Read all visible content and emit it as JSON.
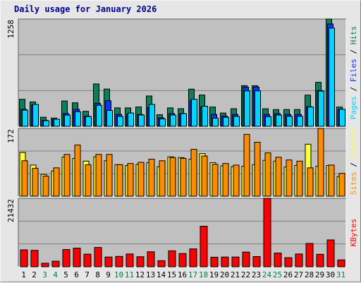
{
  "title": "Daily usage for January 2026",
  "colors": {
    "pages": "#00d5ff",
    "files": "#1433f0",
    "hits": "#0e7d5a",
    "sites": "#ff8c00",
    "visits": "#ffff33",
    "kbytes": "#ff0000",
    "weekday_label": "#000000",
    "weekend_label": "#008040",
    "plot_bg": "#c0c0c0"
  },
  "chart_data": [
    {
      "type": "bar",
      "panel": "hits-files-pages",
      "title": "Daily usage for January 2026",
      "categories": [
        "1",
        "2",
        "3",
        "4",
        "5",
        "6",
        "7",
        "8",
        "9",
        "10",
        "11",
        "12",
        "13",
        "14",
        "15",
        "16",
        "17",
        "18",
        "19",
        "20",
        "21",
        "22",
        "23",
        "24",
        "25",
        "26",
        "27",
        "28",
        "29",
        "30",
        "31"
      ],
      "weekend_days": [
        "3",
        "4",
        "10",
        "11",
        "17",
        "18",
        "24",
        "25",
        "31"
      ],
      "ymax_label": "1258",
      "ylim": [
        0,
        1258
      ],
      "legend": [
        "Pages",
        "Files",
        "Hits"
      ],
      "series": [
        {
          "name": "Hits",
          "values": [
            317,
            286,
            107,
            97,
            297,
            276,
            176,
            497,
            437,
            216,
            216,
            227,
            356,
            136,
            216,
            207,
            436,
            367,
            226,
            156,
            207,
            477,
            476,
            206,
            196,
            197,
            197,
            366,
            516,
            1258,
            226
          ]
        },
        {
          "name": "Files",
          "values": [
            200,
            250,
            70,
            80,
            150,
            200,
            120,
            270,
            300,
            140,
            140,
            140,
            220,
            100,
            150,
            150,
            300,
            230,
            140,
            120,
            140,
            460,
            460,
            140,
            150,
            140,
            140,
            230,
            420,
            1200,
            200
          ]
        },
        {
          "name": "Pages",
          "values": [
            190,
            257,
            66,
            83,
            132,
            171,
            115,
            247,
            186,
            116,
            156,
            133,
            257,
            87,
            133,
            149,
            317,
            236,
            96,
            106,
            116,
            415,
            416,
            113,
            132,
            118,
            118,
            227,
            413,
            1152,
            200
          ]
        }
      ]
    },
    {
      "type": "bar",
      "panel": "visits-sites",
      "categories": [
        "1",
        "2",
        "3",
        "4",
        "5",
        "6",
        "7",
        "8",
        "9",
        "10",
        "11",
        "12",
        "13",
        "14",
        "15",
        "16",
        "17",
        "18",
        "19",
        "20",
        "21",
        "22",
        "23",
        "24",
        "25",
        "26",
        "27",
        "28",
        "29",
        "30",
        "31"
      ],
      "ymax_label": "172",
      "ylim": [
        0,
        172
      ],
      "legend": [
        "Sites",
        "Visits"
      ],
      "series": [
        {
          "name": "Visits",
          "values": [
            111,
            79,
            55,
            64,
            99,
            96,
            89,
            100,
            90,
            80,
            78,
            81,
            85,
            75,
            100,
            98,
            94,
            108,
            85,
            77,
            75,
            76,
            80,
            91,
            89,
            74,
            78,
            132,
            76,
            78,
            50
          ]
        },
        {
          "name": "Sites",
          "values": [
            90,
            71,
            51,
            72,
            106,
            130,
            80,
            106,
            106,
            80,
            83,
            86,
            94,
            90,
            98,
            96,
            119,
            102,
            81,
            83,
            79,
            157,
            137,
            110,
            99,
            92,
            89,
            72,
            172,
            79,
            58
          ]
        }
      ]
    },
    {
      "type": "bar",
      "panel": "kbytes",
      "categories": [
        "1",
        "2",
        "3",
        "4",
        "5",
        "6",
        "7",
        "8",
        "9",
        "10",
        "11",
        "12",
        "13",
        "14",
        "15",
        "16",
        "17",
        "18",
        "19",
        "20",
        "21",
        "22",
        "23",
        "24",
        "25",
        "26",
        "27",
        "28",
        "29",
        "30",
        "31"
      ],
      "ymax_label": "21432",
      "ylim": [
        0,
        21432
      ],
      "legend": [
        "KBytes"
      ],
      "series": [
        {
          "name": "KBytes",
          "values": [
            5300,
            5150,
            1100,
            1750,
            5400,
            5850,
            3950,
            6050,
            3050,
            3250,
            4000,
            3150,
            4700,
            1900,
            5000,
            4150,
            5600,
            12700,
            3000,
            3050,
            3050,
            4600,
            3200,
            21432,
            4300,
            2850,
            4000,
            7300,
            3900,
            8400,
            2150
          ]
        }
      ]
    }
  ]
}
